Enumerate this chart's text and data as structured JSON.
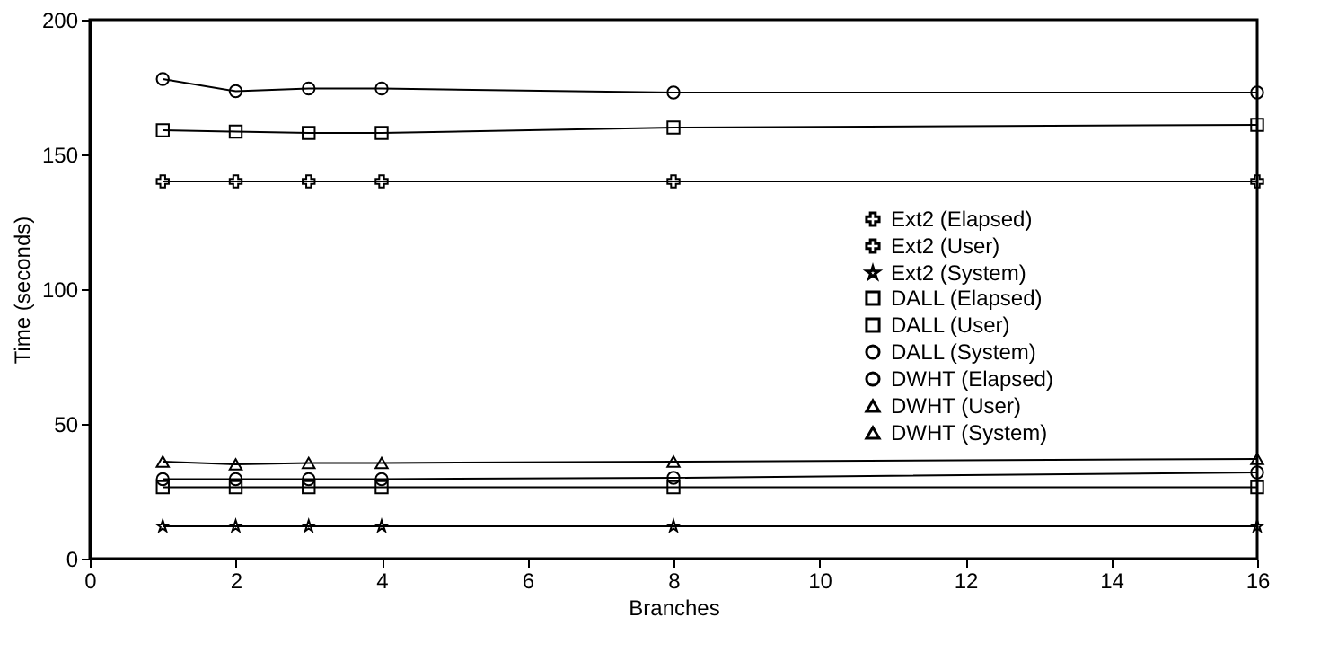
{
  "chart_data": {
    "type": "line",
    "xlabel": "Branches",
    "ylabel": "Time (seconds)",
    "x": [
      1,
      2,
      3,
      4,
      8,
      16
    ],
    "xlim": [
      0,
      16
    ],
    "xticks": [
      0,
      2,
      4,
      6,
      8,
      10,
      12,
      14,
      16
    ],
    "ylim": [
      0,
      200
    ],
    "yticks": [
      0,
      50,
      100,
      150,
      200
    ],
    "grid": false,
    "legend": "right",
    "line_style": "solid",
    "series": [
      {
        "name": "Ext2 (Elapsed)",
        "color": "#000000",
        "marker": "cross",
        "values": [
          140,
          140,
          140,
          140,
          140,
          140
        ]
      },
      {
        "name": "Ext2 (User)",
        "color": "#000000",
        "marker": "cross",
        "values": [
          null,
          null,
          null,
          null,
          null,
          null
        ]
      },
      {
        "name": "Ext2 (System)",
        "color": "#000000",
        "marker": "star",
        "values": [
          12,
          12,
          12,
          12,
          12,
          12
        ]
      },
      {
        "name": "DALL (Elapsed)",
        "color": "#000000",
        "marker": "square",
        "values": [
          159,
          158.5,
          158,
          158,
          160,
          161
        ]
      },
      {
        "name": "DALL (User)",
        "color": "#000000",
        "marker": "square",
        "values": [
          26.5,
          26.5,
          26.5,
          26.5,
          26.5,
          26.5
        ]
      },
      {
        "name": "DALL (System)",
        "color": "#000000",
        "marker": "circle",
        "values": [
          29.5,
          29.5,
          29.5,
          29.5,
          30,
          32
        ]
      },
      {
        "name": "DWHT (Elapsed)",
        "color": "#000000",
        "marker": "circle",
        "values": [
          178,
          173.5,
          174.5,
          174.5,
          173,
          173
        ]
      },
      {
        "name": "DWHT (User)",
        "color": "#000000",
        "marker": "triangle",
        "values": [
          null,
          null,
          null,
          null,
          null,
          null
        ]
      },
      {
        "name": "DWHT (System)",
        "color": "#000000",
        "marker": "triangle",
        "values": [
          36,
          35,
          35.5,
          35.5,
          36,
          37
        ]
      }
    ]
  }
}
